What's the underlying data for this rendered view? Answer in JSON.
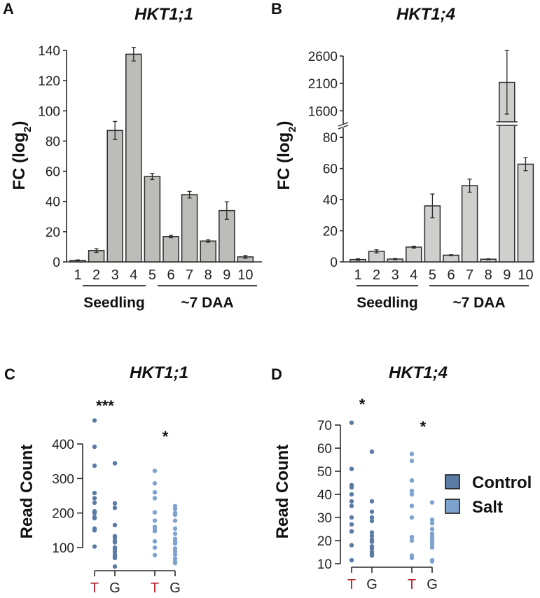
{
  "colors": {
    "bar_fill_A": "#bcbcb8",
    "bar_fill_B": "#cfcfcd",
    "bar_stroke": "#2a2a2a",
    "axis": "#2a2a2a",
    "control": "#5b7ba5",
    "salt": "#7fa3cf",
    "allele_T": "#b8202e",
    "allele_G": "#222222"
  },
  "chart_data": [
    {
      "panel": "A",
      "type": "bar",
      "title": "HKT1;1",
      "ylabel": "FC (log",
      "ylabel_sub": "2",
      "ylabel_close": ")",
      "ylim": [
        0,
        140
      ],
      "yticks": [
        0,
        20,
        40,
        60,
        80,
        100,
        120,
        140
      ],
      "categories": [
        "1",
        "2",
        "3",
        "4",
        "5",
        "6",
        "7",
        "8",
        "9",
        "10"
      ],
      "values": [
        1,
        7.5,
        87,
        137.5,
        56.5,
        16.8,
        44.5,
        13.8,
        34,
        3.3
      ],
      "errors": [
        0.3,
        1.2,
        6,
        4.5,
        2,
        0.8,
        2.2,
        0.8,
        5.8,
        0.9
      ],
      "groups": [
        {
          "label": "Seedling",
          "categories": [
            "1",
            "2",
            "3",
            "4"
          ]
        },
        {
          "label": "~7 DAA",
          "categories": [
            "5",
            "6",
            "7",
            "8",
            "9",
            "10"
          ]
        }
      ]
    },
    {
      "panel": "B",
      "type": "bar",
      "title": "HKT1;4",
      "ylabel": "FC (log",
      "ylabel_sub": "2",
      "ylabel_close": ")",
      "axis_break": {
        "lower_range": [
          0,
          90
        ],
        "upper_range": [
          1450,
          2600
        ]
      },
      "yticks_lower": [
        0,
        20,
        40,
        60,
        80
      ],
      "yticks_upper": [
        1600,
        2100,
        2600
      ],
      "categories": [
        "1",
        "2",
        "3",
        "4",
        "5",
        "6",
        "7",
        "8",
        "9",
        "10"
      ],
      "values": [
        1.5,
        6.8,
        1.8,
        9.5,
        36,
        4.3,
        49,
        1.7,
        2120,
        62.8
      ],
      "errors": [
        0.5,
        1,
        0.4,
        0.6,
        7.6,
        0.3,
        4.2,
        0.3,
        580,
        4.2
      ],
      "groups": [
        {
          "label": "Seedling",
          "categories": [
            "1",
            "2",
            "3",
            "4"
          ]
        },
        {
          "label": "~7 DAA",
          "categories": [
            "5",
            "6",
            "7",
            "8",
            "9",
            "10"
          ]
        }
      ]
    },
    {
      "panel": "C",
      "type": "scatter",
      "title": "HKT1;1",
      "ylabel": "Read Count",
      "ylim": [
        100,
        400
      ],
      "yticks": [
        100,
        200,
        300,
        400
      ],
      "x_categories": [
        "T",
        "G",
        "T",
        "G"
      ],
      "series": [
        {
          "name": "Control T",
          "condition": "Control",
          "allele": "T",
          "values": [
            468,
            392,
            337,
            258,
            243,
            230,
            205,
            200,
            188,
            185,
            155,
            150,
            103
          ]
        },
        {
          "name": "Control G",
          "condition": "Control",
          "allele": "G",
          "values": [
            344,
            228,
            215,
            165,
            133,
            128,
            120,
            115,
            100,
            95,
            88,
            80,
            75,
            70,
            45
          ]
        },
        {
          "name": "Salt T",
          "condition": "Salt",
          "allele": "T",
          "values": [
            322,
            286,
            260,
            243,
            202,
            178,
            160,
            153,
            148,
            118,
            100,
            78
          ]
        },
        {
          "name": "Salt G",
          "condition": "Salt",
          "allele": "G",
          "values": [
            220,
            212,
            200,
            195,
            178,
            155,
            140,
            125,
            118,
            112,
            97,
            88,
            80,
            68,
            60,
            55
          ]
        }
      ],
      "annotations": [
        {
          "text": "***",
          "near": "Control"
        },
        {
          "text": "*",
          "near": "Salt"
        }
      ]
    },
    {
      "panel": "D",
      "type": "scatter",
      "title": "HKT1;4",
      "ylabel": "Read Count",
      "ylim": [
        10,
        70
      ],
      "yticks": [
        10,
        20,
        30,
        40,
        50,
        60,
        70
      ],
      "x_categories": [
        "T",
        "G",
        "T",
        "G"
      ],
      "series": [
        {
          "name": "Control T",
          "condition": "Control",
          "allele": "T",
          "values": [
            71,
            51,
            44,
            43,
            40,
            37,
            35,
            30,
            27,
            24,
            18,
            11.5
          ]
        },
        {
          "name": "Control G",
          "condition": "Control",
          "allele": "G",
          "values": [
            58.5,
            37,
            32.5,
            30,
            28.5,
            23.5,
            22,
            20.5,
            19.5,
            17.5,
            16.5,
            15,
            14,
            13.5
          ]
        },
        {
          "name": "Salt T",
          "condition": "Salt",
          "allele": "T",
          "values": [
            57.5,
            54.5,
            46,
            41.5,
            40,
            35,
            30,
            21.5,
            20,
            13.5,
            12.5
          ]
        },
        {
          "name": "Salt G",
          "condition": "Salt",
          "allele": "G",
          "values": [
            36.5,
            29,
            27.5,
            25,
            23,
            22,
            21,
            20,
            19,
            18,
            17,
            11.5,
            11
          ]
        }
      ],
      "annotations": [
        {
          "text": "*",
          "near": "Control"
        },
        {
          "text": "*",
          "near": "Salt"
        }
      ]
    }
  ],
  "legend": {
    "items": [
      {
        "label": "Control",
        "color": "#5b7ba5"
      },
      {
        "label": "Salt",
        "color": "#7fa3cf"
      }
    ],
    "placement": "right"
  },
  "panel_letters": [
    "A",
    "B",
    "C",
    "D"
  ]
}
